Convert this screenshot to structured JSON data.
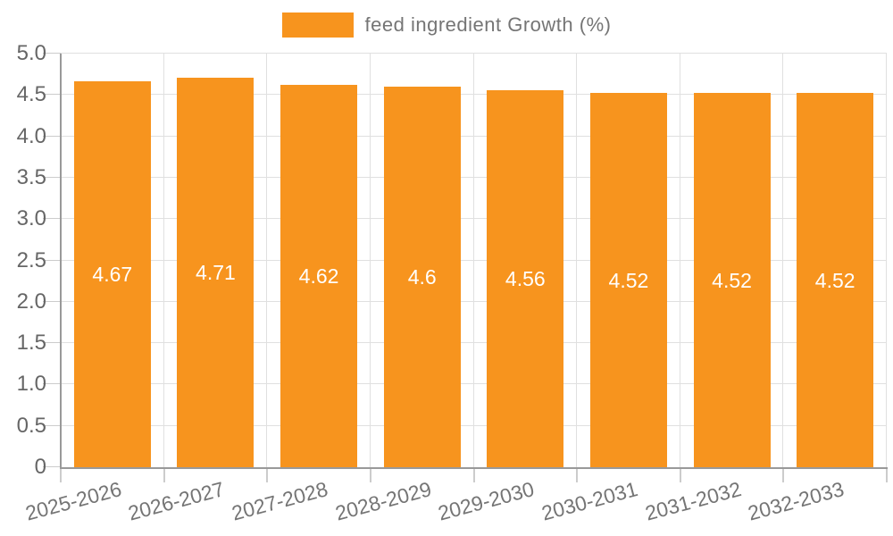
{
  "legend": {
    "label": "feed ingredient Growth (%)",
    "swatch_color": "#F7941E"
  },
  "chart_data": {
    "type": "bar",
    "title": "",
    "xlabel": "",
    "ylabel": "",
    "categories": [
      "2025-2026",
      "2026-2027",
      "2027-2028",
      "2028-2029",
      "2029-2030",
      "2030-2031",
      "2031-2032",
      "2032-2033"
    ],
    "series": [
      {
        "name": "feed ingredient Growth (%)",
        "values": [
          4.67,
          4.71,
          4.62,
          4.6,
          4.56,
          4.52,
          4.52,
          4.52
        ],
        "value_labels": [
          "4.67",
          "4.71",
          "4.62",
          "4.6",
          "4.56",
          "4.52",
          "4.52",
          "4.52"
        ],
        "color": "#F7941E"
      }
    ],
    "ylim": [
      0,
      5
    ],
    "ytick_step": 0.5,
    "ytick_labels": [
      "0",
      "0.5",
      "1.0",
      "1.5",
      "2.0",
      "2.5",
      "3.0",
      "3.5",
      "4.0",
      "4.5",
      "5.0"
    ],
    "grid": true,
    "legend_position": "top",
    "value_label_color": "#ffffff",
    "colors": {
      "grid_line": "#e0e0e0",
      "axis_line": "#999999",
      "tick_line": "#cccccc",
      "y_label_text": "#666666",
      "x_label_text": "#757575",
      "legend_text": "#757575"
    }
  }
}
